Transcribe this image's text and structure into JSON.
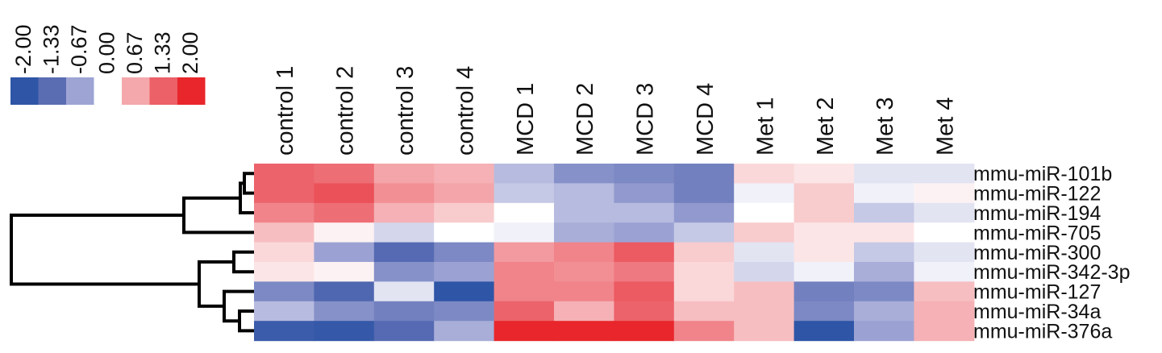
{
  "chart_data": {
    "type": "heatmap",
    "columns": [
      "control 1",
      "control 2",
      "control 3",
      "control 4",
      "MCD 1",
      "MCD 2",
      "MCD 3",
      "MCD 4",
      "Met 1",
      "Met 2",
      "Met 3",
      "Met 4"
    ],
    "rows": [
      "mmu-miR-101b",
      "mmu-miR-122",
      "mmu-miR-194",
      "mmu-miR-705",
      "mmu-miR-300",
      "mmu-miR-342-3p",
      "mmu-miR-127",
      "mmu-miR-34a",
      "mmu-miR-376a"
    ],
    "values": [
      [
        1.3,
        1.2,
        0.7,
        0.6,
        -0.5,
        -0.9,
        -1.0,
        -1.1,
        0.3,
        0.2,
        -0.2,
        -0.2
      ],
      [
        1.3,
        1.5,
        0.9,
        0.7,
        -0.4,
        -0.5,
        -0.8,
        -1.1,
        -0.1,
        0.4,
        -0.1,
        0.1
      ],
      [
        1.0,
        1.2,
        0.6,
        0.4,
        0.0,
        -0.5,
        -0.5,
        -0.8,
        0.0,
        0.4,
        -0.4,
        -0.2
      ],
      [
        0.5,
        0.1,
        -0.3,
        0.0,
        -0.1,
        -0.6,
        -0.7,
        -0.4,
        0.4,
        0.2,
        0.2,
        0.0
      ],
      [
        0.3,
        -0.7,
        -1.4,
        -1.0,
        0.8,
        1.0,
        1.4,
        0.4,
        -0.2,
        0.2,
        -0.4,
        -0.2
      ],
      [
        0.2,
        0.1,
        -0.9,
        -0.7,
        1.0,
        0.9,
        1.1,
        0.3,
        -0.3,
        -0.1,
        -0.6,
        -0.1
      ],
      [
        -1.0,
        -1.5,
        -0.2,
        -2.0,
        1.0,
        1.0,
        1.4,
        0.3,
        0.5,
        -1.1,
        -1.0,
        0.5
      ],
      [
        -0.5,
        -0.9,
        -1.1,
        -1.0,
        1.3,
        0.6,
        1.3,
        0.5,
        0.5,
        -1.0,
        -0.6,
        0.6
      ],
      [
        -1.8,
        -1.9,
        -1.4,
        -0.6,
        2.0,
        2.0,
        2.0,
        1.0,
        0.5,
        -2.0,
        -0.7,
        0.6
      ]
    ],
    "legend": {
      "ticks": [
        "-2.00",
        "-1.33",
        "-0.67",
        "0.00",
        "0.67",
        "1.33",
        "2.00"
      ],
      "colors": [
        "#2e55a6",
        "#5a6db3",
        "#9ea4d4",
        "#ffffff",
        "#f4a8ac",
        "#ec6068",
        "#e8262b"
      ]
    },
    "dendrogram": "rows clustered: (101b, 122, 194, 705) and (300, 342-3p, 127, 34a, 376a)"
  }
}
